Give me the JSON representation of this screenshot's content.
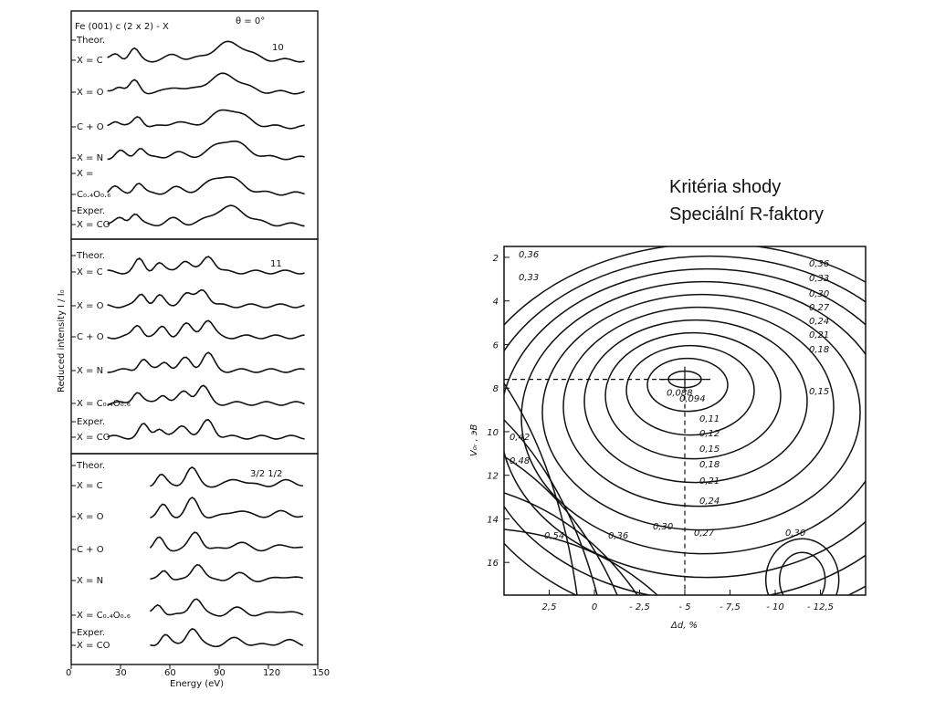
{
  "slide": {
    "title_line_1": "Kritéria shody",
    "title_line_2": "Speciální R-faktory"
  },
  "chart_data": [
    {
      "type": "line",
      "title": "Fe (001) c (2 x 2) - X",
      "angle_label": "θ = 0°",
      "xlabel": "Energy (eV)",
      "ylabel": "Reduced intensity I / I₀",
      "xlim": [
        0,
        150
      ],
      "x_ticks": [
        "0",
        "30",
        "60",
        "90",
        "120",
        "150"
      ],
      "panels": [
        {
          "beam_label": "10",
          "curve_labels": [
            "Theor.",
            "X = C",
            "X = O",
            "C + O",
            "X = N",
            "X =",
            "C₀.₄O₀.₆",
            "Exper.",
            "X = CO"
          ]
        },
        {
          "beam_label": "11",
          "curve_labels": [
            "Theor.",
            "X = C",
            "X = O",
            "C + O",
            "X = N",
            "X = C₀.₄O₀.₆",
            "Exper.",
            "X = CO"
          ]
        },
        {
          "beam_label": "3/2  1/2",
          "curve_labels": [
            "Theor.",
            "X = C",
            "X = O",
            "C + O",
            "X = N",
            "X = C₀.₄O₀.₆",
            "Exper.",
            "X = CO"
          ]
        }
      ]
    },
    {
      "type": "contour",
      "xlabel": "Δd,  %",
      "ylabel": "V₀ᵣ ,  эВ",
      "x_ticks": [
        "2,5",
        "0",
        "- 2,5",
        "- 5",
        "- 7,5",
        "- 10",
        "- 12,5"
      ],
      "y_ticks": [
        "2",
        "4",
        "6",
        "8",
        "10",
        "12",
        "14",
        "16"
      ],
      "minimum": {
        "x": -5,
        "y": 7.6,
        "label": "0,088"
      },
      "contour_labels": [
        "0,36",
        "0,33",
        "0,36",
        "0,33",
        "0,30",
        "0,27",
        "0,24",
        "0,21",
        "0,18",
        "0,15",
        "0,094",
        "0,11",
        "0,12",
        "0,15",
        "0,18",
        "0,21",
        "0,24",
        "0,42",
        "0,48",
        "0,54",
        "0,36",
        "0,30",
        "0,27",
        "0,30"
      ]
    }
  ]
}
